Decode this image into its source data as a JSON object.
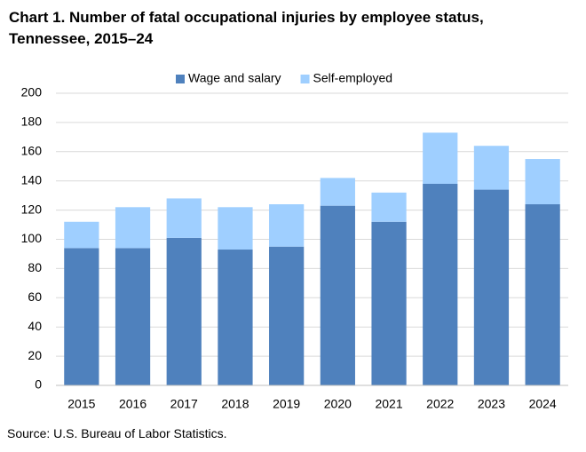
{
  "chart_data": {
    "type": "stacked-bar",
    "title": "Chart 1. Number of fatal occupational injuries by employee status,\nTennessee, 2015–24",
    "categories": [
      "2015",
      "2016",
      "2017",
      "2018",
      "2019",
      "2020",
      "2021",
      "2022",
      "2023",
      "2024"
    ],
    "series": [
      {
        "name": "Wage and salary",
        "color": "#4f81bd",
        "values": [
          94,
          94,
          101,
          93,
          95,
          123,
          112,
          138,
          134,
          124
        ]
      },
      {
        "name": "Self-employed",
        "color": "#9fcfff",
        "values": [
          18,
          28,
          27,
          29,
          29,
          19,
          20,
          35,
          30,
          31
        ]
      }
    ],
    "ylim": [
      0,
      200
    ],
    "yticks": [
      0,
      20,
      40,
      60,
      80,
      100,
      120,
      140,
      160,
      180,
      200
    ],
    "grid": true,
    "legend": "top",
    "source": "Source: U.S. Bureau of Labor Statistics."
  }
}
